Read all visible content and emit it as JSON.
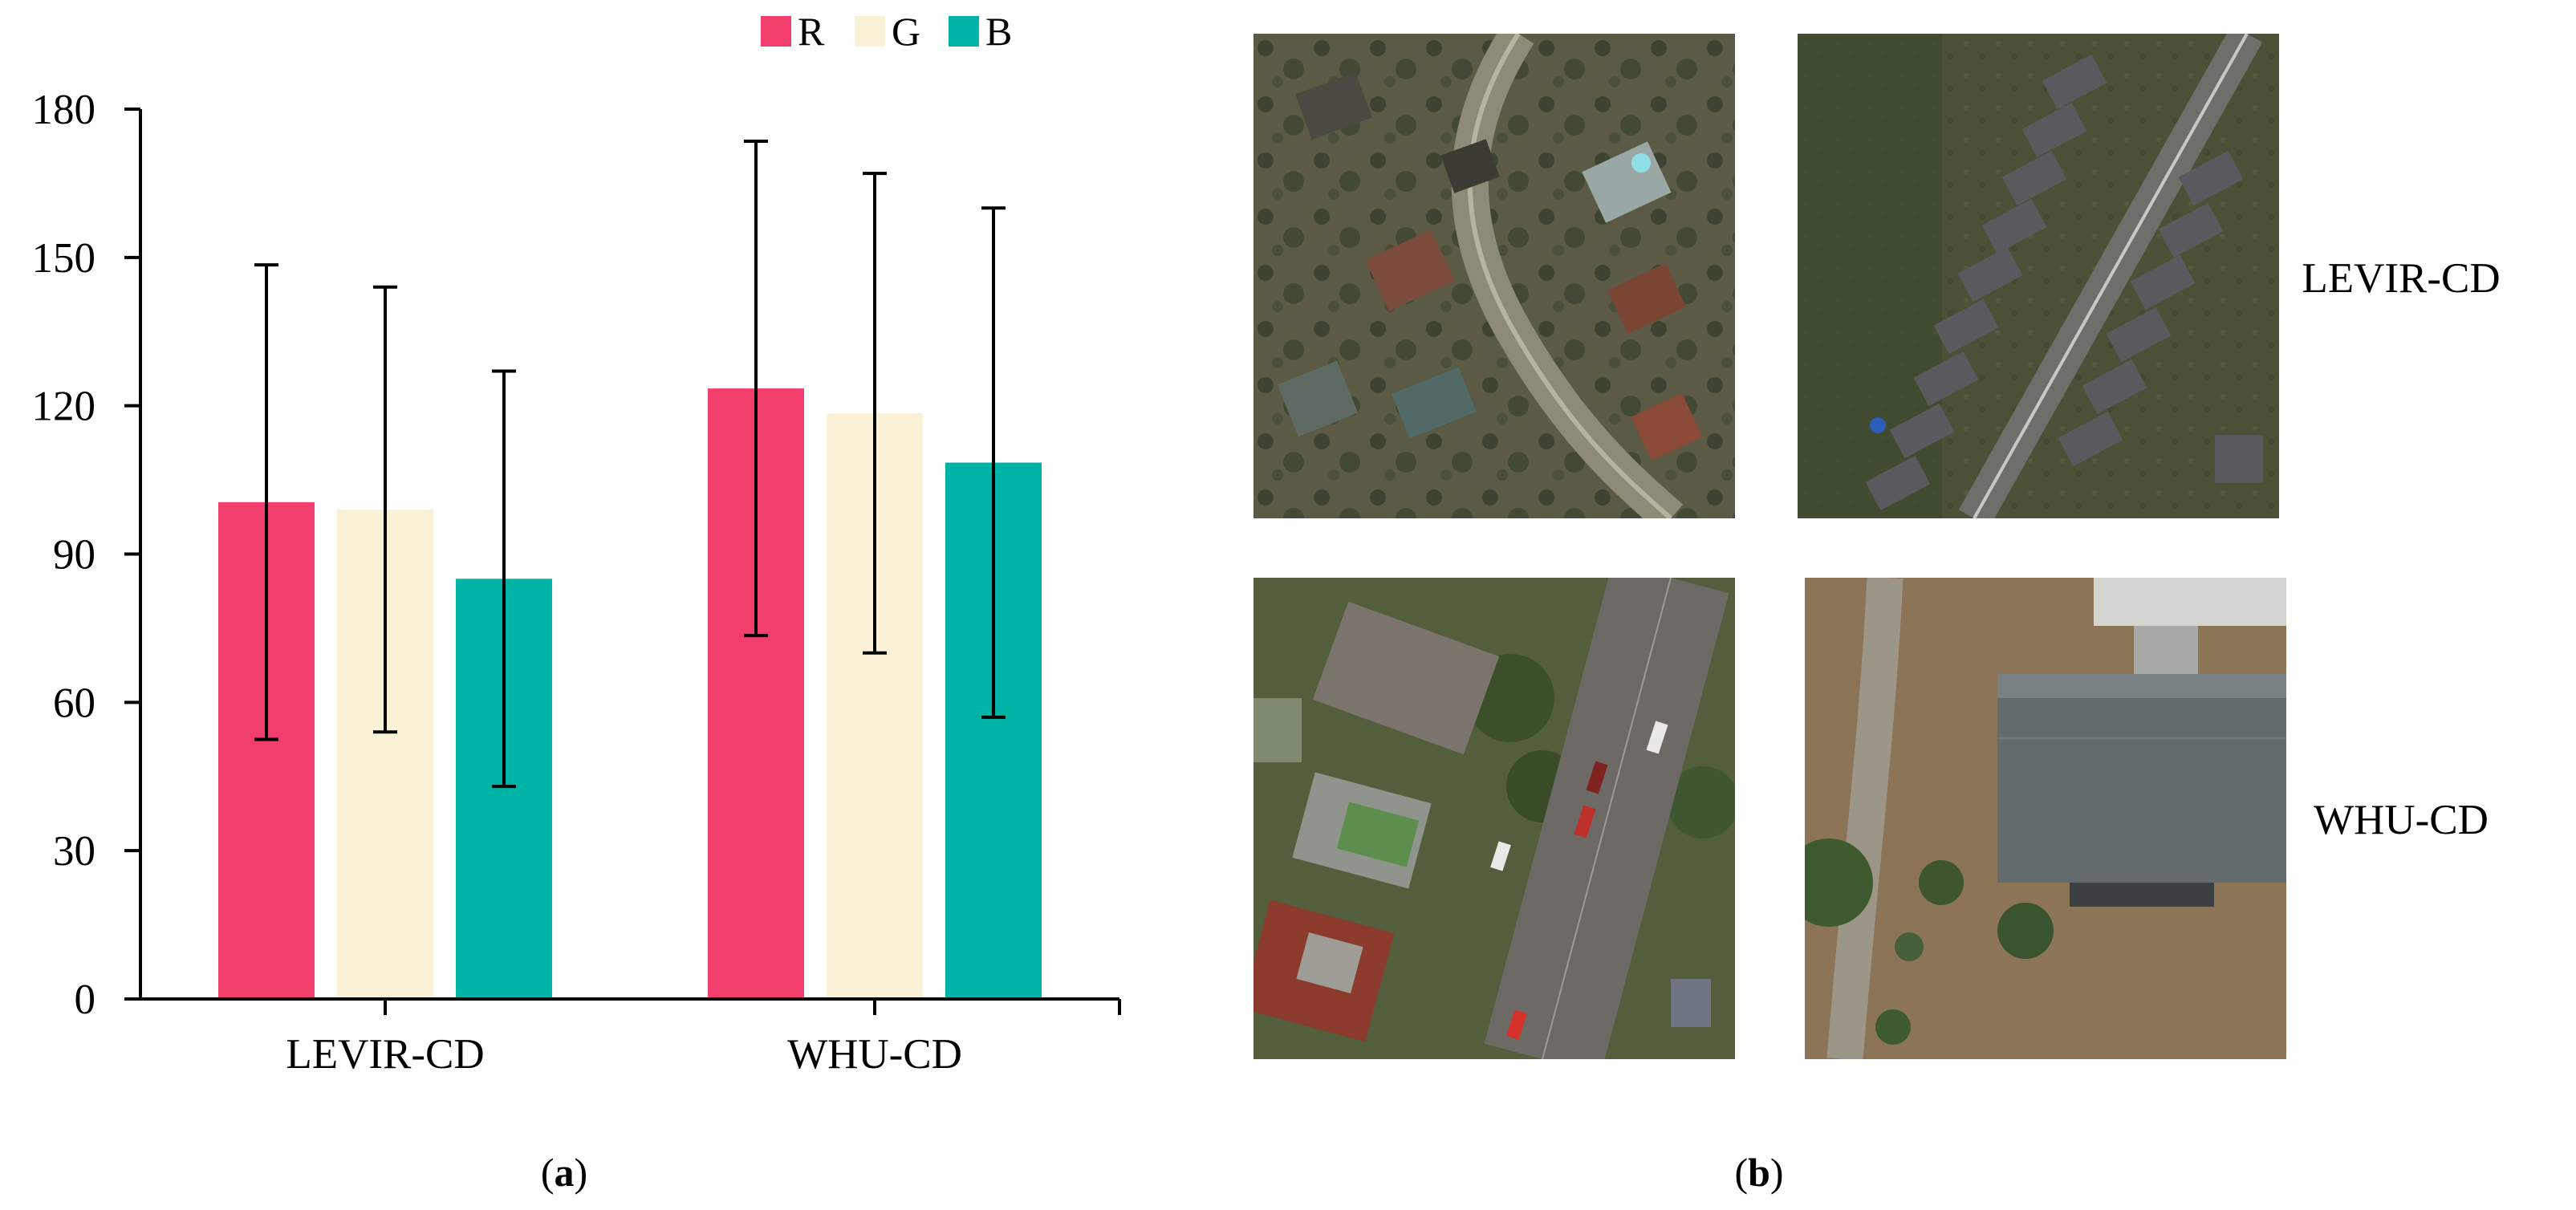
{
  "chart_data": {
    "type": "bar",
    "categories": [
      "LEVIR-CD",
      "WHU-CD"
    ],
    "series": [
      {
        "name": "R",
        "values": [
          100.5,
          123.5
        ],
        "error": [
          48,
          50
        ],
        "color": "#f23e6c"
      },
      {
        "name": "G",
        "values": [
          99,
          118.5
        ],
        "error": [
          45,
          48.5
        ],
        "color": "#f9f2d6"
      },
      {
        "name": "B",
        "values": [
          85,
          108.5
        ],
        "error": [
          42,
          51.5
        ],
        "color": "#00b3a7"
      }
    ],
    "yticks": [
      "0",
      "30",
      "60",
      "90",
      "120",
      "150",
      "180"
    ],
    "ylim": [
      0,
      180
    ],
    "legend_position": "top",
    "grid": false
  },
  "panel_labels": {
    "a": "(a)",
    "b": "(b)"
  },
  "open_paren": "(",
  "close_paren": ")",
  "samples": {
    "row_labels": [
      "LEVIR-CD",
      "WHU-CD"
    ],
    "images": [
      {
        "dataset": "LEVIR-CD",
        "scene": "curved-road-residential",
        "palette": [
          "#5b5a45",
          "#8d8a78",
          "#b8b2a0"
        ]
      },
      {
        "dataset": "LEVIR-CD",
        "scene": "diagonal-road-rowhouses",
        "palette": [
          "#47503a",
          "#6e6e6a",
          "#c8c8c0"
        ]
      },
      {
        "dataset": "WHU-CD",
        "scene": "street-with-cars",
        "palette": [
          "#525e3c",
          "#6d6a66",
          "#9e9a90"
        ]
      },
      {
        "dataset": "WHU-CD",
        "scene": "large-roof-building",
        "palette": [
          "#8c7457",
          "#646b6f",
          "#3f5a2f"
        ]
      }
    ]
  }
}
